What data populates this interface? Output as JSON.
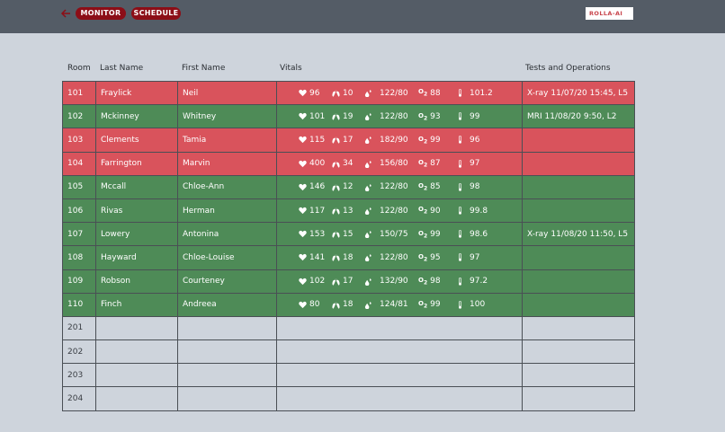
{
  "topbar": {
    "back_icon": "arrow-left-icon",
    "tabs": [
      {
        "label": "MONITOR"
      },
      {
        "label": "SCHEDULE"
      }
    ],
    "logo_text": "ROLLA-AI"
  },
  "colors": {
    "critical": "#d9535c",
    "stable": "#4e8b57",
    "pill": "#8c0e17",
    "topbar": "#545c66",
    "background": "#ced4dc"
  },
  "table": {
    "headers": {
      "room": "Room",
      "last": "Last Name",
      "first": "First Name",
      "vitals": "Vitals",
      "tests": "Tests and Operations"
    },
    "vital_icons": [
      "heart-icon",
      "lungs-icon",
      "blood-drop-icon",
      "o2-icon",
      "thermometer-icon"
    ],
    "rows": [
      {
        "room": "101",
        "last": "Fraylick",
        "first": "Neil",
        "hr": "96",
        "rr": "10",
        "bp": "122/80",
        "o2": "88",
        "temp": "101.2",
        "tests": "X-ray 11/07/20 15:45, L5",
        "status": "red"
      },
      {
        "room": "102",
        "last": "Mckinney",
        "first": "Whitney",
        "hr": "101",
        "rr": "19",
        "bp": "122/80",
        "o2": "93",
        "temp": "99",
        "tests": "MRI 11/08/20  9:50, L2",
        "status": "green"
      },
      {
        "room": "103",
        "last": "Clements",
        "first": "Tamia",
        "hr": "115",
        "rr": "17",
        "bp": "182/90",
        "o2": "99",
        "temp": "96",
        "tests": "",
        "status": "red"
      },
      {
        "room": "104",
        "last": "Farrington",
        "first": "Marvin",
        "hr": "400",
        "rr": "34",
        "bp": "156/80",
        "o2": "87",
        "temp": "97",
        "tests": "",
        "status": "red"
      },
      {
        "room": "105",
        "last": "Mccall",
        "first": "Chloe-Ann",
        "hr": "146",
        "rr": "12",
        "bp": "122/80",
        "o2": "85",
        "temp": "98",
        "tests": "",
        "status": "green"
      },
      {
        "room": "106",
        "last": "Rivas",
        "first": "Herman",
        "hr": "117",
        "rr": "13",
        "bp": "122/80",
        "o2": "90",
        "temp": "99.8",
        "tests": "",
        "status": "green"
      },
      {
        "room": "107",
        "last": "Lowery",
        "first": "Antonina",
        "hr": "153",
        "rr": "15",
        "bp": "150/75",
        "o2": "99",
        "temp": "98.6",
        "tests": "X-ray 11/08/20 11:50, L5",
        "status": "green"
      },
      {
        "room": "108",
        "last": "Hayward",
        "first": "Chloe-Louise",
        "hr": "141",
        "rr": "18",
        "bp": "122/80",
        "o2": "95",
        "temp": "97",
        "tests": "",
        "status": "green"
      },
      {
        "room": "109",
        "last": "Robson",
        "first": "Courteney",
        "hr": "102",
        "rr": "17",
        "bp": "132/90",
        "o2": "98",
        "temp": "97.2",
        "tests": "",
        "status": "green"
      },
      {
        "room": "110",
        "last": "Finch",
        "first": "Andreea",
        "hr": "80",
        "rr": "18",
        "bp": "124/81",
        "o2": "99",
        "temp": "100",
        "tests": "",
        "status": "green"
      }
    ],
    "empty_rooms": [
      "201",
      "202",
      "203",
      "204"
    ]
  }
}
